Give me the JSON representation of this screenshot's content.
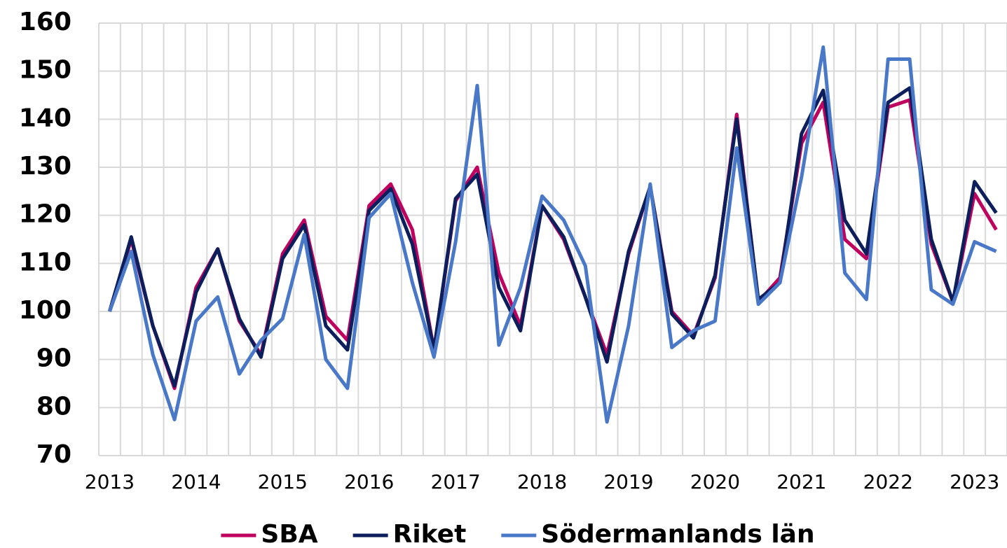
{
  "chart_data": {
    "type": "line",
    "categories": [
      "2013",
      null,
      null,
      null,
      "2014",
      null,
      null,
      null,
      "2015",
      null,
      null,
      null,
      "2016",
      null,
      null,
      null,
      "2017",
      null,
      null,
      null,
      "2018",
      null,
      null,
      null,
      "2019",
      null,
      null,
      null,
      "2020",
      null,
      null,
      null,
      "2021",
      null,
      null,
      null,
      "2022",
      null,
      null,
      null,
      "2023",
      null
    ],
    "series": [
      {
        "name": "SBA",
        "color": "#c0005f",
        "values": [
          100,
          115,
          97,
          84,
          105,
          113,
          98,
          91,
          112,
          119,
          99,
          94,
          122,
          126.5,
          117,
          92,
          123,
          130,
          108,
          97,
          122,
          115,
          103,
          91,
          112,
          126,
          100,
          95,
          107,
          141,
          102,
          107,
          135,
          143.5,
          115,
          111,
          142.5,
          144,
          114,
          102,
          124.5,
          117
        ]
      },
      {
        "name": "Riket",
        "color": "#0c1f5c",
        "values": [
          100,
          115.5,
          97,
          84.5,
          104,
          113,
          98.5,
          90.5,
          111,
          118,
          97,
          92,
          121,
          125.5,
          114,
          92,
          123.5,
          128.5,
          105,
          96,
          122,
          115.5,
          103,
          89.5,
          112.5,
          126,
          99.5,
          94.5,
          107.5,
          140,
          102.5,
          106,
          137,
          146,
          119,
          112,
          143.5,
          146.5,
          115,
          102,
          127,
          120.5
        ]
      },
      {
        "name": "Södermanlands län",
        "color": "#4a78c8",
        "values": [
          100,
          112.5,
          91,
          77.5,
          98,
          103,
          87,
          94,
          98.5,
          116,
          90,
          84,
          119.5,
          124.5,
          106,
          90.5,
          114.5,
          147,
          93,
          105,
          124,
          119,
          109.5,
          77,
          97,
          126.5,
          92.5,
          96,
          98,
          134,
          101.5,
          106,
          128,
          155,
          108,
          102.5,
          152.5,
          152.5,
          104.5,
          101.5,
          114.5,
          112.5
        ]
      }
    ],
    "ylim": [
      70,
      160
    ],
    "yticks": [
      70,
      80,
      90,
      100,
      110,
      120,
      130,
      140,
      150,
      160
    ],
    "grid": true,
    "legend": "bottom"
  }
}
